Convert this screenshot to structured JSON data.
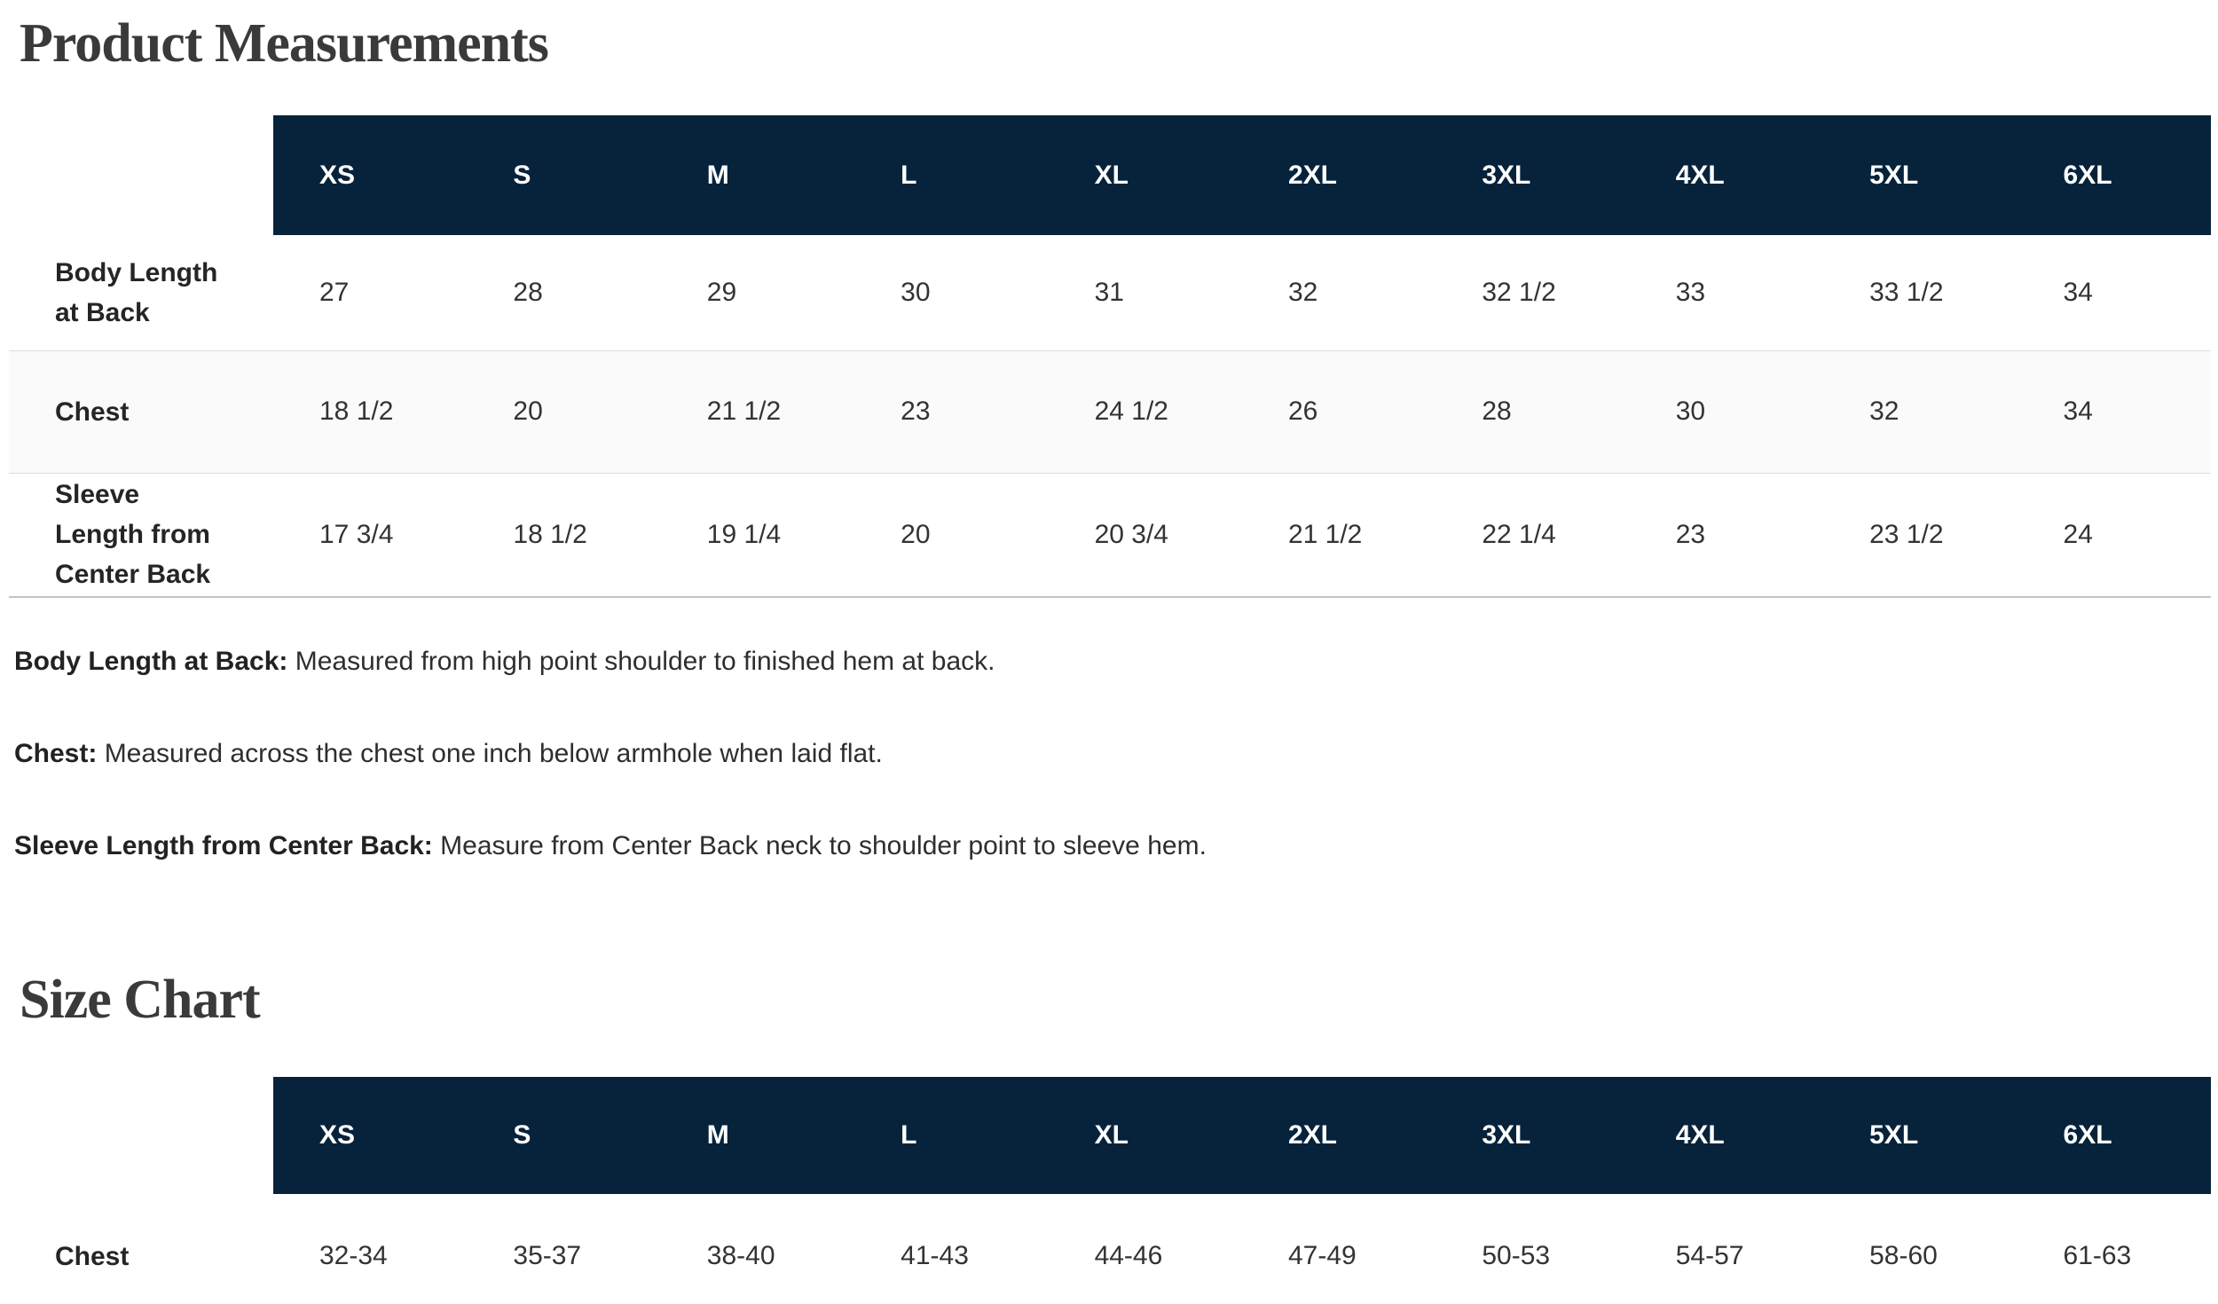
{
  "measurements": {
    "title": "Product Measurements",
    "sizes": [
      "XS",
      "S",
      "M",
      "L",
      "XL",
      "2XL",
      "3XL",
      "4XL",
      "5XL",
      "6XL"
    ],
    "rows": [
      {
        "label": "Body Length\nat Back",
        "values": [
          "27",
          "28",
          "29",
          "30",
          "31",
          "32",
          "32 1/2",
          "33",
          "33 1/2",
          "34"
        ]
      },
      {
        "label": "Chest",
        "values": [
          "18 1/2",
          "20",
          "21 1/2",
          "23",
          "24 1/2",
          "26",
          "28",
          "30",
          "32",
          "34"
        ]
      },
      {
        "label": "Sleeve\nLength from\nCenter Back",
        "values": [
          "17 3/4",
          "18 1/2",
          "19 1/4",
          "20",
          "20 3/4",
          "21 1/2",
          "22 1/4",
          "23",
          "23 1/2",
          "24"
        ]
      }
    ],
    "definitions": [
      {
        "term": "Body Length at Back:",
        "definition": "Measured from high point shoulder to finished hem at back."
      },
      {
        "term": "Chest:",
        "definition": "Measured across the chest one inch below armhole when laid flat."
      },
      {
        "term": "Sleeve Length from Center Back:",
        "definition": "Measure from Center Back neck to shoulder point to sleeve hem."
      }
    ]
  },
  "size_chart": {
    "title": "Size Chart",
    "sizes": [
      "XS",
      "S",
      "M",
      "L",
      "XL",
      "2XL",
      "3XL",
      "4XL",
      "5XL",
      "6XL"
    ],
    "rows": [
      {
        "label": "Chest",
        "values": [
          "32-34",
          "35-37",
          "38-40",
          "41-43",
          "44-46",
          "47-49",
          "50-53",
          "54-57",
          "58-60",
          "61-63"
        ]
      }
    ]
  },
  "colors": {
    "header_bg": "#07233B",
    "header_text": "#ffffff",
    "zebra_row_bg": "#fafafa",
    "title_text": "#3a3a3a"
  }
}
